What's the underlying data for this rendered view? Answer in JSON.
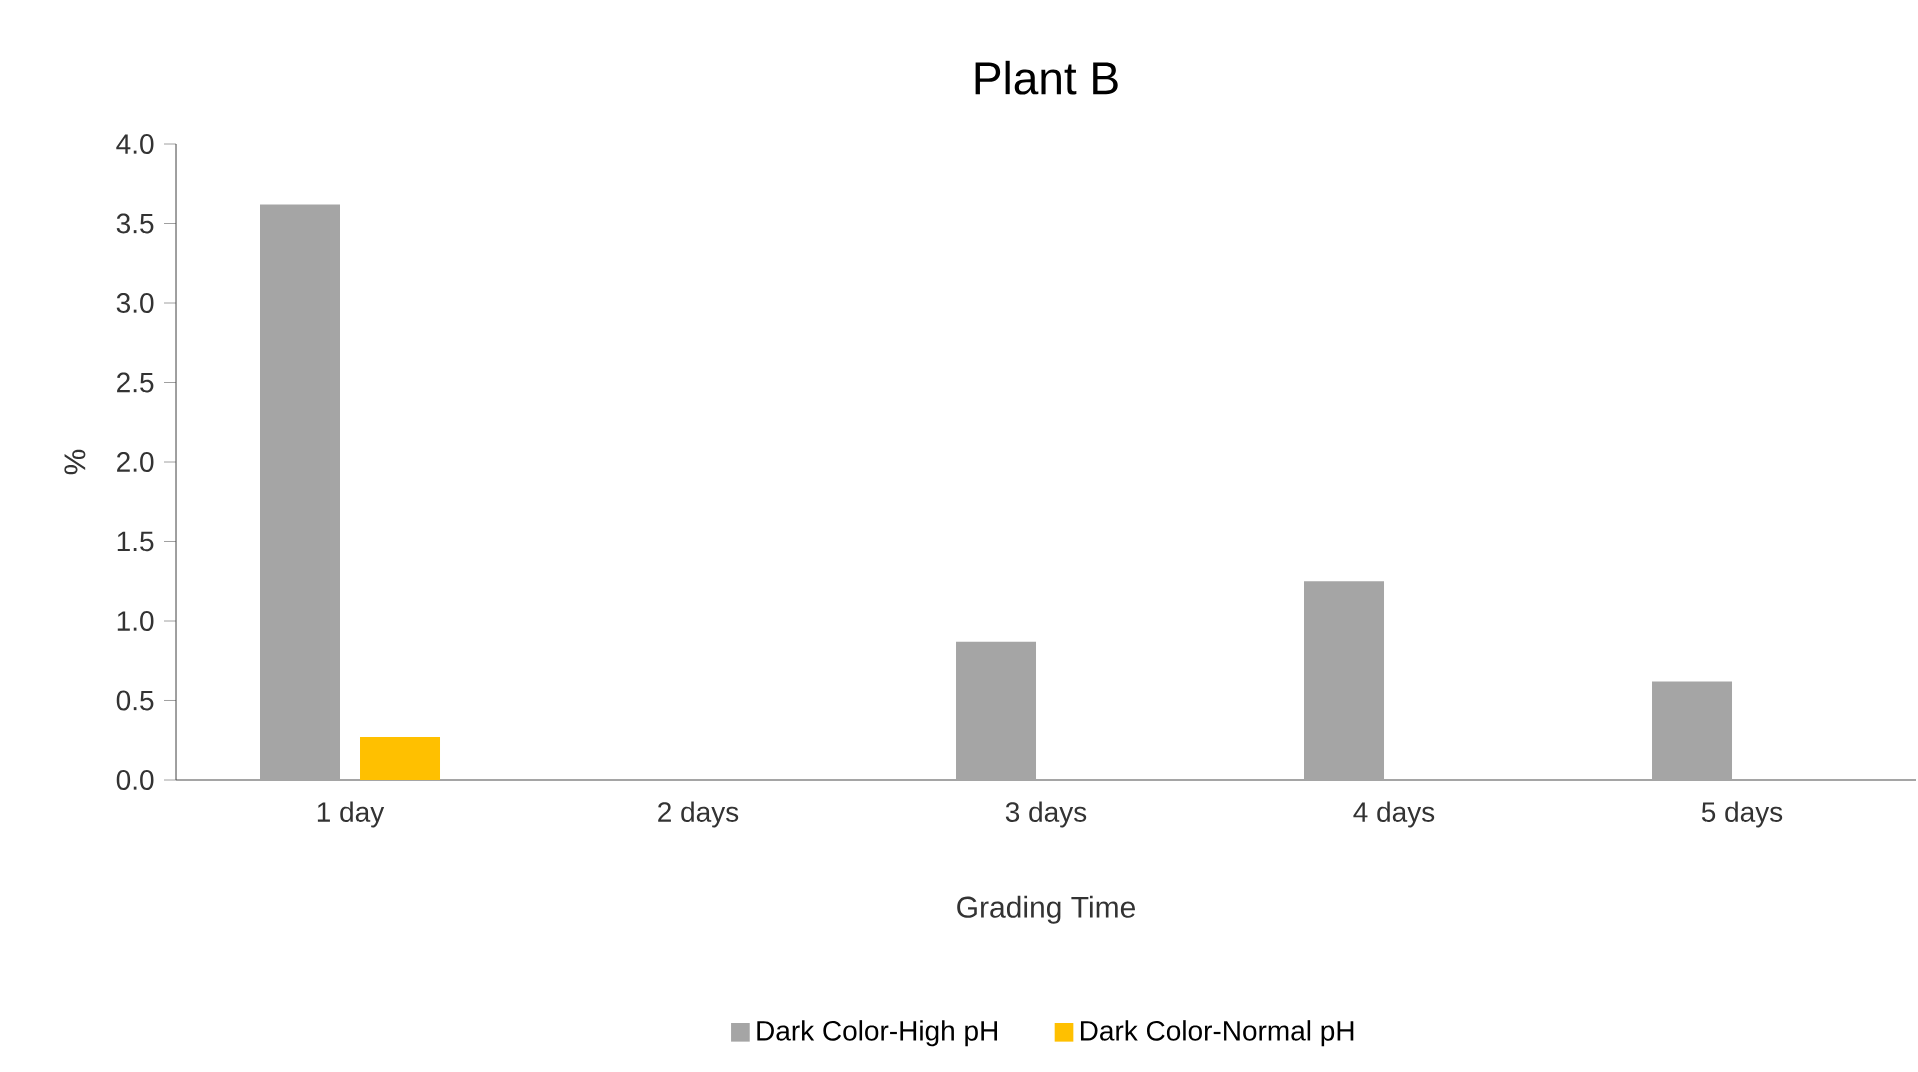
{
  "chart_data": {
    "type": "bar",
    "title": "Plant B",
    "xlabel": "Grading Time",
    "ylabel": "%",
    "categories": [
      "1 day",
      "2 days",
      "3 days",
      "4 days",
      "5 days"
    ],
    "series": [
      {
        "name": "Dark Color-High pH",
        "color": "#a5a5a5",
        "values": [
          3.62,
          0,
          0.87,
          1.25,
          0.62
        ]
      },
      {
        "name": "Dark Color-Normal pH",
        "color": "#ffc000",
        "values": [
          0.27,
          0,
          0,
          0,
          0
        ]
      }
    ],
    "ylim": [
      0,
      4
    ],
    "yticks": [
      {
        "value": 0,
        "label": "0.0"
      },
      {
        "value": 0.5,
        "label": "0.5"
      },
      {
        "value": 1,
        "label": "1.0"
      },
      {
        "value": 1.5,
        "label": "1.5"
      },
      {
        "value": 2,
        "label": "2.0"
      },
      {
        "value": 2.5,
        "label": "2.5"
      },
      {
        "value": 3,
        "label": "3.0"
      },
      {
        "value": 3.5,
        "label": "3.5"
      },
      {
        "value": 4,
        "label": "4.0"
      }
    ],
    "grid": false,
    "legend": "bottom"
  }
}
